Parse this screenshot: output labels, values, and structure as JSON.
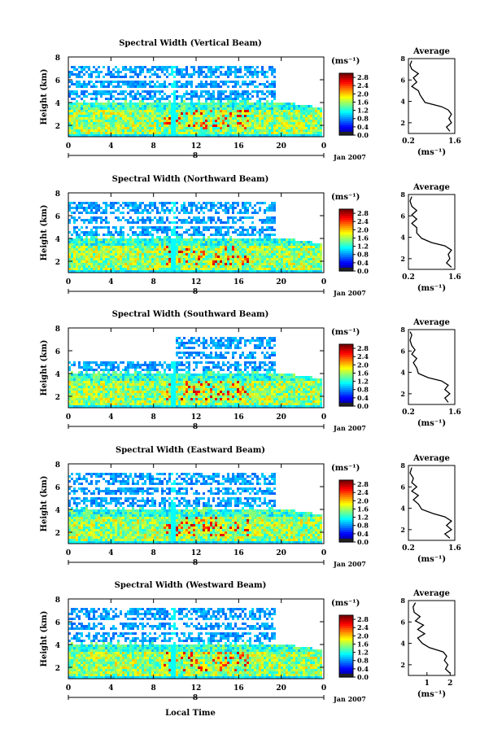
{
  "figure": {
    "xaxis_label": "Local Time",
    "date_label": "Jan 2007",
    "average_title": "Average",
    "unit_label": "(ms⁻¹)",
    "height_label": "Height (km)",
    "colorbar_ticks": [
      "0.0",
      "0.4",
      "0.8",
      "1.2",
      "1.6",
      "2.0",
      "2.4",
      "2.8"
    ],
    "colorbar_range": [
      0.0,
      3.0
    ]
  },
  "chart_data": [
    {
      "type": "heatmap",
      "title": "Spectral Width (Vertical Beam)",
      "ylabel": "Height (km)",
      "x_ticks": [
        "0",
        "4",
        "8",
        "12",
        "16",
        "20",
        "0"
      ],
      "x_range": [
        0,
        24
      ],
      "day_marker": "8",
      "y_ticks": [
        "2",
        "4",
        "6",
        "8"
      ],
      "y_range": [
        1,
        8
      ],
      "colorbar_unit": "(ms⁻¹)",
      "colorbar_ticks": [
        "0.0",
        "0.4",
        "0.8",
        "1.2",
        "1.6",
        "2.0",
        "2.4",
        "2.8"
      ],
      "profile": {
        "title": "Average",
        "xlabel": "(ms⁻¹)",
        "x_ticks": [
          "0.2",
          "1.6"
        ],
        "x_range": [
          0.2,
          1.6
        ],
        "y_ticks": [
          "2",
          "4",
          "6",
          "8"
        ],
        "y_range": [
          1,
          8
        ],
        "points": [
          [
            1.45,
            1.2
          ],
          [
            1.35,
            1.6
          ],
          [
            1.5,
            2.0
          ],
          [
            1.42,
            2.4
          ],
          [
            1.5,
            2.8
          ],
          [
            1.4,
            3.2
          ],
          [
            1.2,
            3.5
          ],
          [
            0.7,
            3.9
          ],
          [
            0.55,
            4.6
          ],
          [
            0.5,
            5.0
          ],
          [
            0.3,
            5.4
          ],
          [
            0.45,
            5.8
          ],
          [
            0.35,
            6.2
          ],
          [
            0.5,
            6.6
          ],
          [
            0.3,
            7.0
          ],
          [
            0.25,
            7.4
          ],
          [
            0.3,
            7.8
          ]
        ]
      }
    },
    {
      "type": "heatmap",
      "title": "Spectral Width (Northward Beam)",
      "ylabel": "Height (km)",
      "x_ticks": [
        "0",
        "4",
        "8",
        "12",
        "16",
        "20",
        "0"
      ],
      "x_range": [
        0,
        24
      ],
      "day_marker": "8",
      "y_ticks": [
        "2",
        "4",
        "6",
        "8"
      ],
      "y_range": [
        1,
        8
      ],
      "colorbar_unit": "(ms⁻¹)",
      "colorbar_ticks": [
        "0.0",
        "0.4",
        "0.8",
        "1.2",
        "1.6",
        "2.0",
        "2.4",
        "2.8"
      ],
      "profile": {
        "title": "Average",
        "xlabel": "(ms⁻¹)",
        "x_ticks": [
          "0.2",
          "1.6"
        ],
        "x_range": [
          0.2,
          1.6
        ],
        "y_ticks": [
          "2",
          "4",
          "6",
          "8"
        ],
        "y_range": [
          1,
          8
        ],
        "points": [
          [
            1.5,
            1.2
          ],
          [
            1.35,
            1.6
          ],
          [
            1.45,
            2.0
          ],
          [
            1.4,
            2.4
          ],
          [
            1.5,
            2.8
          ],
          [
            1.3,
            3.2
          ],
          [
            0.9,
            3.5
          ],
          [
            0.6,
            3.9
          ],
          [
            0.45,
            4.4
          ],
          [
            0.45,
            4.9
          ],
          [
            0.3,
            5.3
          ],
          [
            0.45,
            5.7
          ],
          [
            0.3,
            6.1
          ],
          [
            0.45,
            6.5
          ],
          [
            0.3,
            6.9
          ],
          [
            0.25,
            7.4
          ],
          [
            0.3,
            7.8
          ]
        ]
      }
    },
    {
      "type": "heatmap",
      "title": "Spectral Width (Southward Beam)",
      "ylabel": "Height (km)",
      "x_ticks": [
        "0",
        "4",
        "8",
        "12",
        "16",
        "20",
        "0"
      ],
      "x_range": [
        0,
        24
      ],
      "day_marker": "8",
      "y_ticks": [
        "2",
        "4",
        "6",
        "8"
      ],
      "y_range": [
        1,
        8
      ],
      "colorbar_unit": "(ms⁻¹)",
      "colorbar_ticks": [
        "0.0",
        "0.4",
        "0.8",
        "1.2",
        "1.6",
        "2.0",
        "2.4",
        "2.8"
      ],
      "profile": {
        "title": "Average",
        "xlabel": "(ms⁻¹)",
        "x_ticks": [
          "0.2",
          "1.6"
        ],
        "x_range": [
          0.2,
          1.6
        ],
        "y_ticks": [
          "2",
          "4",
          "6",
          "8"
        ],
        "y_range": [
          1,
          8
        ],
        "points": [
          [
            1.4,
            1.2
          ],
          [
            1.3,
            1.6
          ],
          [
            1.45,
            2.0
          ],
          [
            1.3,
            2.4
          ],
          [
            1.4,
            2.8
          ],
          [
            1.2,
            3.2
          ],
          [
            0.8,
            3.5
          ],
          [
            0.5,
            3.9
          ],
          [
            0.45,
            4.4
          ],
          [
            0.35,
            4.9
          ],
          [
            0.45,
            5.3
          ],
          [
            0.3,
            5.7
          ],
          [
            0.4,
            6.1
          ],
          [
            0.3,
            6.5
          ],
          [
            0.25,
            7.0
          ],
          [
            0.3,
            7.5
          ],
          [
            0.25,
            7.8
          ]
        ]
      }
    },
    {
      "type": "heatmap",
      "title": "Spectral Width (Eastward Beam)",
      "ylabel": "Height (km)",
      "x_ticks": [
        "0",
        "4",
        "8",
        "12",
        "16",
        "20",
        "0"
      ],
      "x_range": [
        0,
        24
      ],
      "day_marker": "8",
      "y_ticks": [
        "2",
        "4",
        "6",
        "8"
      ],
      "y_range": [
        1,
        8
      ],
      "colorbar_unit": "(ms⁻¹)",
      "colorbar_ticks": [
        "0.0",
        "0.4",
        "0.8",
        "1.2",
        "1.6",
        "2.0",
        "2.4",
        "2.8"
      ],
      "profile": {
        "title": "Average",
        "xlabel": "(ms⁻¹)",
        "x_ticks": [
          "0.2",
          "1.6"
        ],
        "x_range": [
          0.2,
          1.6
        ],
        "y_ticks": [
          "2",
          "4",
          "6",
          "8"
        ],
        "y_range": [
          1,
          8
        ],
        "points": [
          [
            1.45,
            1.2
          ],
          [
            1.3,
            1.6
          ],
          [
            1.5,
            2.0
          ],
          [
            1.35,
            2.4
          ],
          [
            1.5,
            2.8
          ],
          [
            1.3,
            3.2
          ],
          [
            0.95,
            3.5
          ],
          [
            0.6,
            3.9
          ],
          [
            0.5,
            4.4
          ],
          [
            0.35,
            4.8
          ],
          [
            0.5,
            5.2
          ],
          [
            0.3,
            5.6
          ],
          [
            0.45,
            6.0
          ],
          [
            0.3,
            6.4
          ],
          [
            0.35,
            6.8
          ],
          [
            0.25,
            7.3
          ],
          [
            0.3,
            7.8
          ]
        ]
      }
    },
    {
      "type": "heatmap",
      "title": "Spectral Width (Westward Beam)",
      "ylabel": "Height (km)",
      "x_ticks": [
        "0",
        "4",
        "8",
        "12",
        "16",
        "20",
        "0"
      ],
      "x_range": [
        0,
        24
      ],
      "day_marker": "8",
      "y_ticks": [
        "2",
        "4",
        "6",
        "8"
      ],
      "y_range": [
        1,
        8
      ],
      "colorbar_unit": "(ms⁻¹)",
      "colorbar_ticks": [
        "0.0",
        "0.4",
        "0.8",
        "1.2",
        "1.6",
        "2.0",
        "2.4",
        "2.8"
      ],
      "profile": {
        "title": "Average",
        "xlabel": "(ms⁻¹)",
        "x_ticks": [
          "1",
          "2"
        ],
        "x_range": [
          0.2,
          2.2
        ],
        "y_ticks": [
          "2",
          "4",
          "6",
          "8"
        ],
        "y_range": [
          1,
          8
        ],
        "points": [
          [
            2.0,
            1.2
          ],
          [
            1.8,
            1.6
          ],
          [
            1.9,
            2.0
          ],
          [
            1.75,
            2.4
          ],
          [
            1.85,
            2.8
          ],
          [
            1.7,
            3.2
          ],
          [
            1.1,
            3.6
          ],
          [
            0.8,
            4.0
          ],
          [
            0.6,
            4.5
          ],
          [
            0.9,
            4.9
          ],
          [
            0.6,
            5.3
          ],
          [
            0.85,
            5.7
          ],
          [
            0.5,
            6.1
          ],
          [
            0.7,
            6.5
          ],
          [
            0.45,
            6.9
          ],
          [
            0.4,
            7.4
          ],
          [
            0.5,
            7.8
          ]
        ]
      }
    }
  ]
}
